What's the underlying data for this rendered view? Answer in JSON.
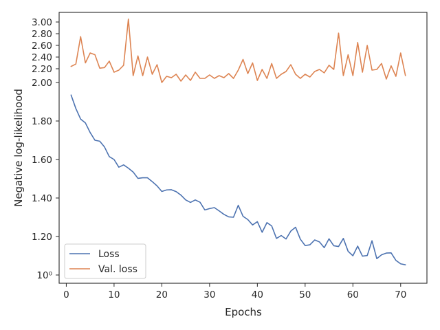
{
  "chart_data": {
    "type": "line",
    "xlabel": "Epochs",
    "ylabel": "Negative log-likelihood",
    "xlim": [
      -1.5,
      75.5
    ],
    "ylim": [
      0.95,
      3.07
    ],
    "y_scale": "log-like (non-linear compressed above 2.00)",
    "xticks": [
      0,
      10,
      20,
      30,
      40,
      50,
      60,
      70
    ],
    "yticks": [
      {
        "value": 1.0,
        "label": "10⁰"
      },
      {
        "value": 1.2,
        "label": "1.20"
      },
      {
        "value": 1.4,
        "label": "1.40"
      },
      {
        "value": 1.6,
        "label": "1.60"
      },
      {
        "value": 1.8,
        "label": "1.80"
      },
      {
        "value": 2.0,
        "label": "2.00"
      },
      {
        "value": 2.2,
        "label": "2.20"
      },
      {
        "value": 2.4,
        "label": "2.40"
      },
      {
        "value": 2.6,
        "label": "2.60"
      },
      {
        "value": 2.8,
        "label": "2.80"
      },
      {
        "value": 3.0,
        "label": "3.00"
      }
    ],
    "grid": false,
    "legend_position": "lower-left",
    "series": [
      {
        "name": "Loss",
        "color": "#4c72b0",
        "x": [
          1,
          2,
          3,
          4,
          5,
          6,
          7,
          8,
          9,
          10,
          11,
          12,
          13,
          14,
          15,
          16,
          17,
          18,
          19,
          20,
          21,
          22,
          23,
          24,
          25,
          26,
          27,
          28,
          29,
          30,
          31,
          32,
          33,
          34,
          35,
          36,
          37,
          38,
          39,
          40,
          41,
          42,
          43,
          44,
          45,
          46,
          47,
          48,
          49,
          50,
          51,
          52,
          53,
          54,
          55,
          56,
          57,
          58,
          59,
          60,
          61,
          62,
          63,
          64,
          65,
          66,
          67,
          68,
          69,
          70,
          71
        ],
        "values": [
          1.935,
          1.865,
          1.81,
          1.79,
          1.74,
          1.7,
          1.695,
          1.665,
          1.615,
          1.6,
          1.56,
          1.572,
          1.555,
          1.535,
          1.502,
          1.505,
          1.505,
          1.485,
          1.463,
          1.434,
          1.442,
          1.443,
          1.433,
          1.415,
          1.39,
          1.377,
          1.39,
          1.378,
          1.338,
          1.345,
          1.35,
          1.333,
          1.315,
          1.302,
          1.3,
          1.362,
          1.305,
          1.288,
          1.26,
          1.277,
          1.222,
          1.272,
          1.255,
          1.19,
          1.205,
          1.187,
          1.228,
          1.248,
          1.186,
          1.153,
          1.157,
          1.182,
          1.172,
          1.142,
          1.188,
          1.152,
          1.148,
          1.19,
          1.123,
          1.1,
          1.15,
          1.098,
          1.101,
          1.178,
          1.085,
          1.105,
          1.114,
          1.115,
          1.076,
          1.058,
          1.053
        ]
      },
      {
        "name": "Val. loss",
        "color": "#dd8452",
        "x": [
          1,
          2,
          3,
          4,
          5,
          6,
          7,
          8,
          9,
          10,
          11,
          12,
          13,
          14,
          15,
          16,
          17,
          18,
          19,
          20,
          21,
          22,
          23,
          24,
          25,
          26,
          27,
          28,
          29,
          30,
          31,
          32,
          33,
          34,
          35,
          36,
          37,
          38,
          39,
          40,
          41,
          42,
          43,
          44,
          45,
          46,
          47,
          48,
          49,
          50,
          51,
          52,
          53,
          54,
          55,
          56,
          57,
          58,
          59,
          60,
          61,
          62,
          63,
          64,
          65,
          66,
          67,
          68,
          69,
          70,
          71
        ],
        "values": [
          2.24,
          2.28,
          2.75,
          2.3,
          2.47,
          2.44,
          2.21,
          2.22,
          2.33,
          2.15,
          2.18,
          2.26,
          3.05,
          2.1,
          2.42,
          2.1,
          2.4,
          2.12,
          2.27,
          2.0,
          2.09,
          2.07,
          2.12,
          2.02,
          2.11,
          2.03,
          2.15,
          2.06,
          2.06,
          2.11,
          2.06,
          2.1,
          2.07,
          2.13,
          2.06,
          2.18,
          2.36,
          2.13,
          2.3,
          2.03,
          2.19,
          2.06,
          2.29,
          2.06,
          2.12,
          2.16,
          2.27,
          2.12,
          2.06,
          2.12,
          2.08,
          2.16,
          2.19,
          2.14,
          2.26,
          2.19,
          2.81,
          2.1,
          2.44,
          2.1,
          2.65,
          2.15,
          2.6,
          2.18,
          2.19,
          2.29,
          2.05,
          2.25,
          2.09,
          2.47,
          2.1
        ]
      }
    ]
  }
}
